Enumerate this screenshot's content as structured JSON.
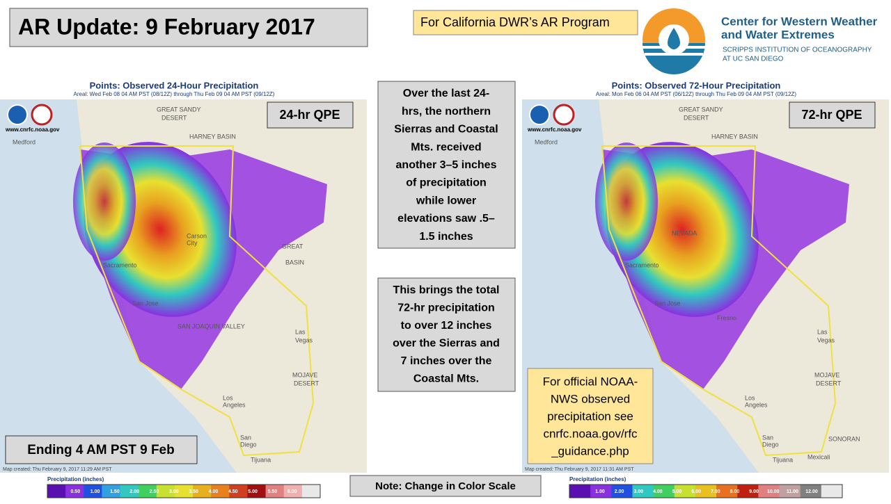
{
  "header": {
    "title": "AR Update: 9 February 2017",
    "program": "For California DWR’s AR Program"
  },
  "logo": {
    "name": [
      "Center for Western Weather",
      "and Water Extremes"
    ],
    "sub": [
      "SCRIPPS INSTITUTION OF OCEANOGRAPHY",
      "AT UC SAN DIEGO"
    ]
  },
  "left_map": {
    "title": "Points: Observed 24-Hour Precipitation",
    "subtitle": "Areal: Wed Feb 08 04 AM PST (08/12Z) through Thu Feb 09 04 AM PST (09/12Z)",
    "badge": "24-hr QPE",
    "site": "www.cnrfc.noaa.gov",
    "created": "Map created: Thu February 9, 2017 11:29 AM PST",
    "ending": "Ending 4 AM PST 9 Feb",
    "legend_title": "Precipitation (inches)",
    "legend_labels": [
      "0.50",
      "1.00",
      "1.50",
      "2.00",
      "2.50",
      "3.00",
      "3.50",
      "4.00",
      "4.50",
      "5.00",
      "5.50",
      "6.00"
    ],
    "places": [
      "GREAT SANDY",
      "DESERT",
      "HARNEY BASIN",
      "Medford",
      "Carson",
      "City",
      "Sacramento",
      "San Jose",
      "SAN JOAQUIN VALLEY",
      "GREAT",
      "BASIN",
      "Las",
      "Vegas",
      "MOJAVE",
      "DESERT",
      "Los",
      "Angeles",
      "San",
      "Diego",
      "Tijuana"
    ]
  },
  "summary": {
    "lines_24h": [
      "Over the last 24-",
      "hrs, the northern",
      "Sierras and Coastal",
      "Mts. received",
      "another 3–5 inches",
      "of precipitation",
      "while lower",
      "elevations saw .5–",
      "1.5 inches"
    ],
    "lines_72h": [
      "This brings the total",
      "72-hr precipitation",
      "to over 12 inches",
      "over the Sierras and",
      "7 inches over the",
      "Coastal Mts."
    ]
  },
  "right_map": {
    "title": "Points: Observed 72-Hour Precipitation",
    "subtitle": "Areal: Mon Feb 06 04 AM PST (06/12Z) through Thu Feb 09 04 AM PST (09/12Z)",
    "badge": "72-hr QPE",
    "site": "www.cnrfc.noaa.gov",
    "created": "Map created: Thu February 9, 2017 11:31 AM PST",
    "legend_title": "Precipitation (inches)",
    "legend_labels": [
      "1.00",
      "2.00",
      "3.00",
      "4.00",
      "5.00",
      "6.00",
      "7.00",
      "8.00",
      "9.00",
      "10.00",
      "11.00",
      "12.00"
    ],
    "official": [
      "For official NOAA-",
      "NWS observed",
      "precipitation see",
      "cnrfc.noaa.gov/rfc",
      "_guidance.php"
    ],
    "places": [
      "GREAT SANDY",
      "DESERT",
      "HARNEY BASIN",
      "Medford",
      "NEVADA",
      "Sacramento",
      "San Jose",
      "Fresno",
      "Las",
      "Vegas",
      "MOJAVE",
      "DESERT",
      "Los",
      "Angeles",
      "San",
      "Diego",
      "Tijuana",
      "Mexicali",
      "SONORAN"
    ]
  },
  "note": "Note: Change in Color Scale"
}
